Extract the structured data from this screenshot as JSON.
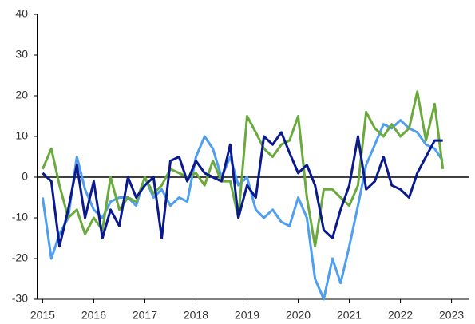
{
  "chart_data": {
    "type": "line",
    "x": [
      2015.0,
      2015.17,
      2015.33,
      2015.5,
      2015.67,
      2015.83,
      2016.0,
      2016.17,
      2016.33,
      2016.5,
      2016.67,
      2016.83,
      2017.0,
      2017.17,
      2017.33,
      2017.5,
      2017.67,
      2017.83,
      2018.0,
      2018.17,
      2018.33,
      2018.5,
      2018.67,
      2018.83,
      2019.0,
      2019.17,
      2019.33,
      2019.5,
      2019.67,
      2019.83,
      2020.0,
      2020.17,
      2020.33,
      2020.5,
      2020.67,
      2020.83,
      2021.0,
      2021.17,
      2021.33,
      2021.5,
      2021.67,
      2021.83,
      2022.0,
      2022.17,
      2022.33,
      2022.5,
      2022.67,
      2022.83
    ],
    "series": [
      {
        "color": "#4f9ef0",
        "values": [
          -5,
          -20,
          -14,
          -10,
          5,
          -3,
          -8,
          -10,
          -6,
          -5,
          -5,
          -7,
          0,
          -5,
          -3,
          -7,
          -5,
          -6,
          5,
          10,
          7,
          0,
          5,
          -2,
          0,
          -8,
          -10,
          -8,
          -11,
          -12,
          -5,
          -10,
          -25,
          -30,
          -20,
          -26,
          -17,
          -7,
          3,
          8,
          13,
          12,
          14,
          12,
          11,
          8,
          7,
          4
        ]
      },
      {
        "color": "#6aaa3c",
        "values": [
          2,
          7,
          -2,
          -10,
          -8,
          -14,
          -10,
          -13,
          0,
          -8,
          -5,
          -6,
          0,
          -4,
          -2,
          2,
          1,
          0,
          1,
          -2,
          4,
          -1,
          -1,
          -10,
          15,
          11,
          7,
          5,
          8,
          9,
          15,
          -5,
          -17,
          -3,
          -3,
          -5,
          -7,
          -2,
          16,
          12,
          10,
          13,
          10,
          12,
          21,
          9,
          18,
          2
        ]
      },
      {
        "color": "#0a1a8c",
        "values": [
          1,
          -1,
          -17,
          -8,
          3,
          -10,
          -1,
          -15,
          -8,
          -12,
          0,
          -5,
          -2,
          0,
          -15,
          4,
          5,
          -1,
          4,
          1,
          0,
          -1,
          8,
          -10,
          -2,
          -5,
          10,
          8,
          11,
          6,
          1,
          3,
          -2,
          -13,
          -15,
          -8,
          -2,
          10,
          -3,
          -1,
          5,
          -2,
          -3,
          -5,
          1,
          5,
          9,
          9
        ]
      }
    ],
    "xlim": [
      2014.9,
      2023.35
    ],
    "xticks": [
      2015,
      2016,
      2017,
      2018,
      2019,
      2020,
      2021,
      2022,
      2023
    ],
    "ylim": [
      -30,
      40
    ],
    "yticks": [
      -30,
      -20,
      -10,
      0,
      10,
      20,
      30,
      40
    ],
    "grid": false
  }
}
